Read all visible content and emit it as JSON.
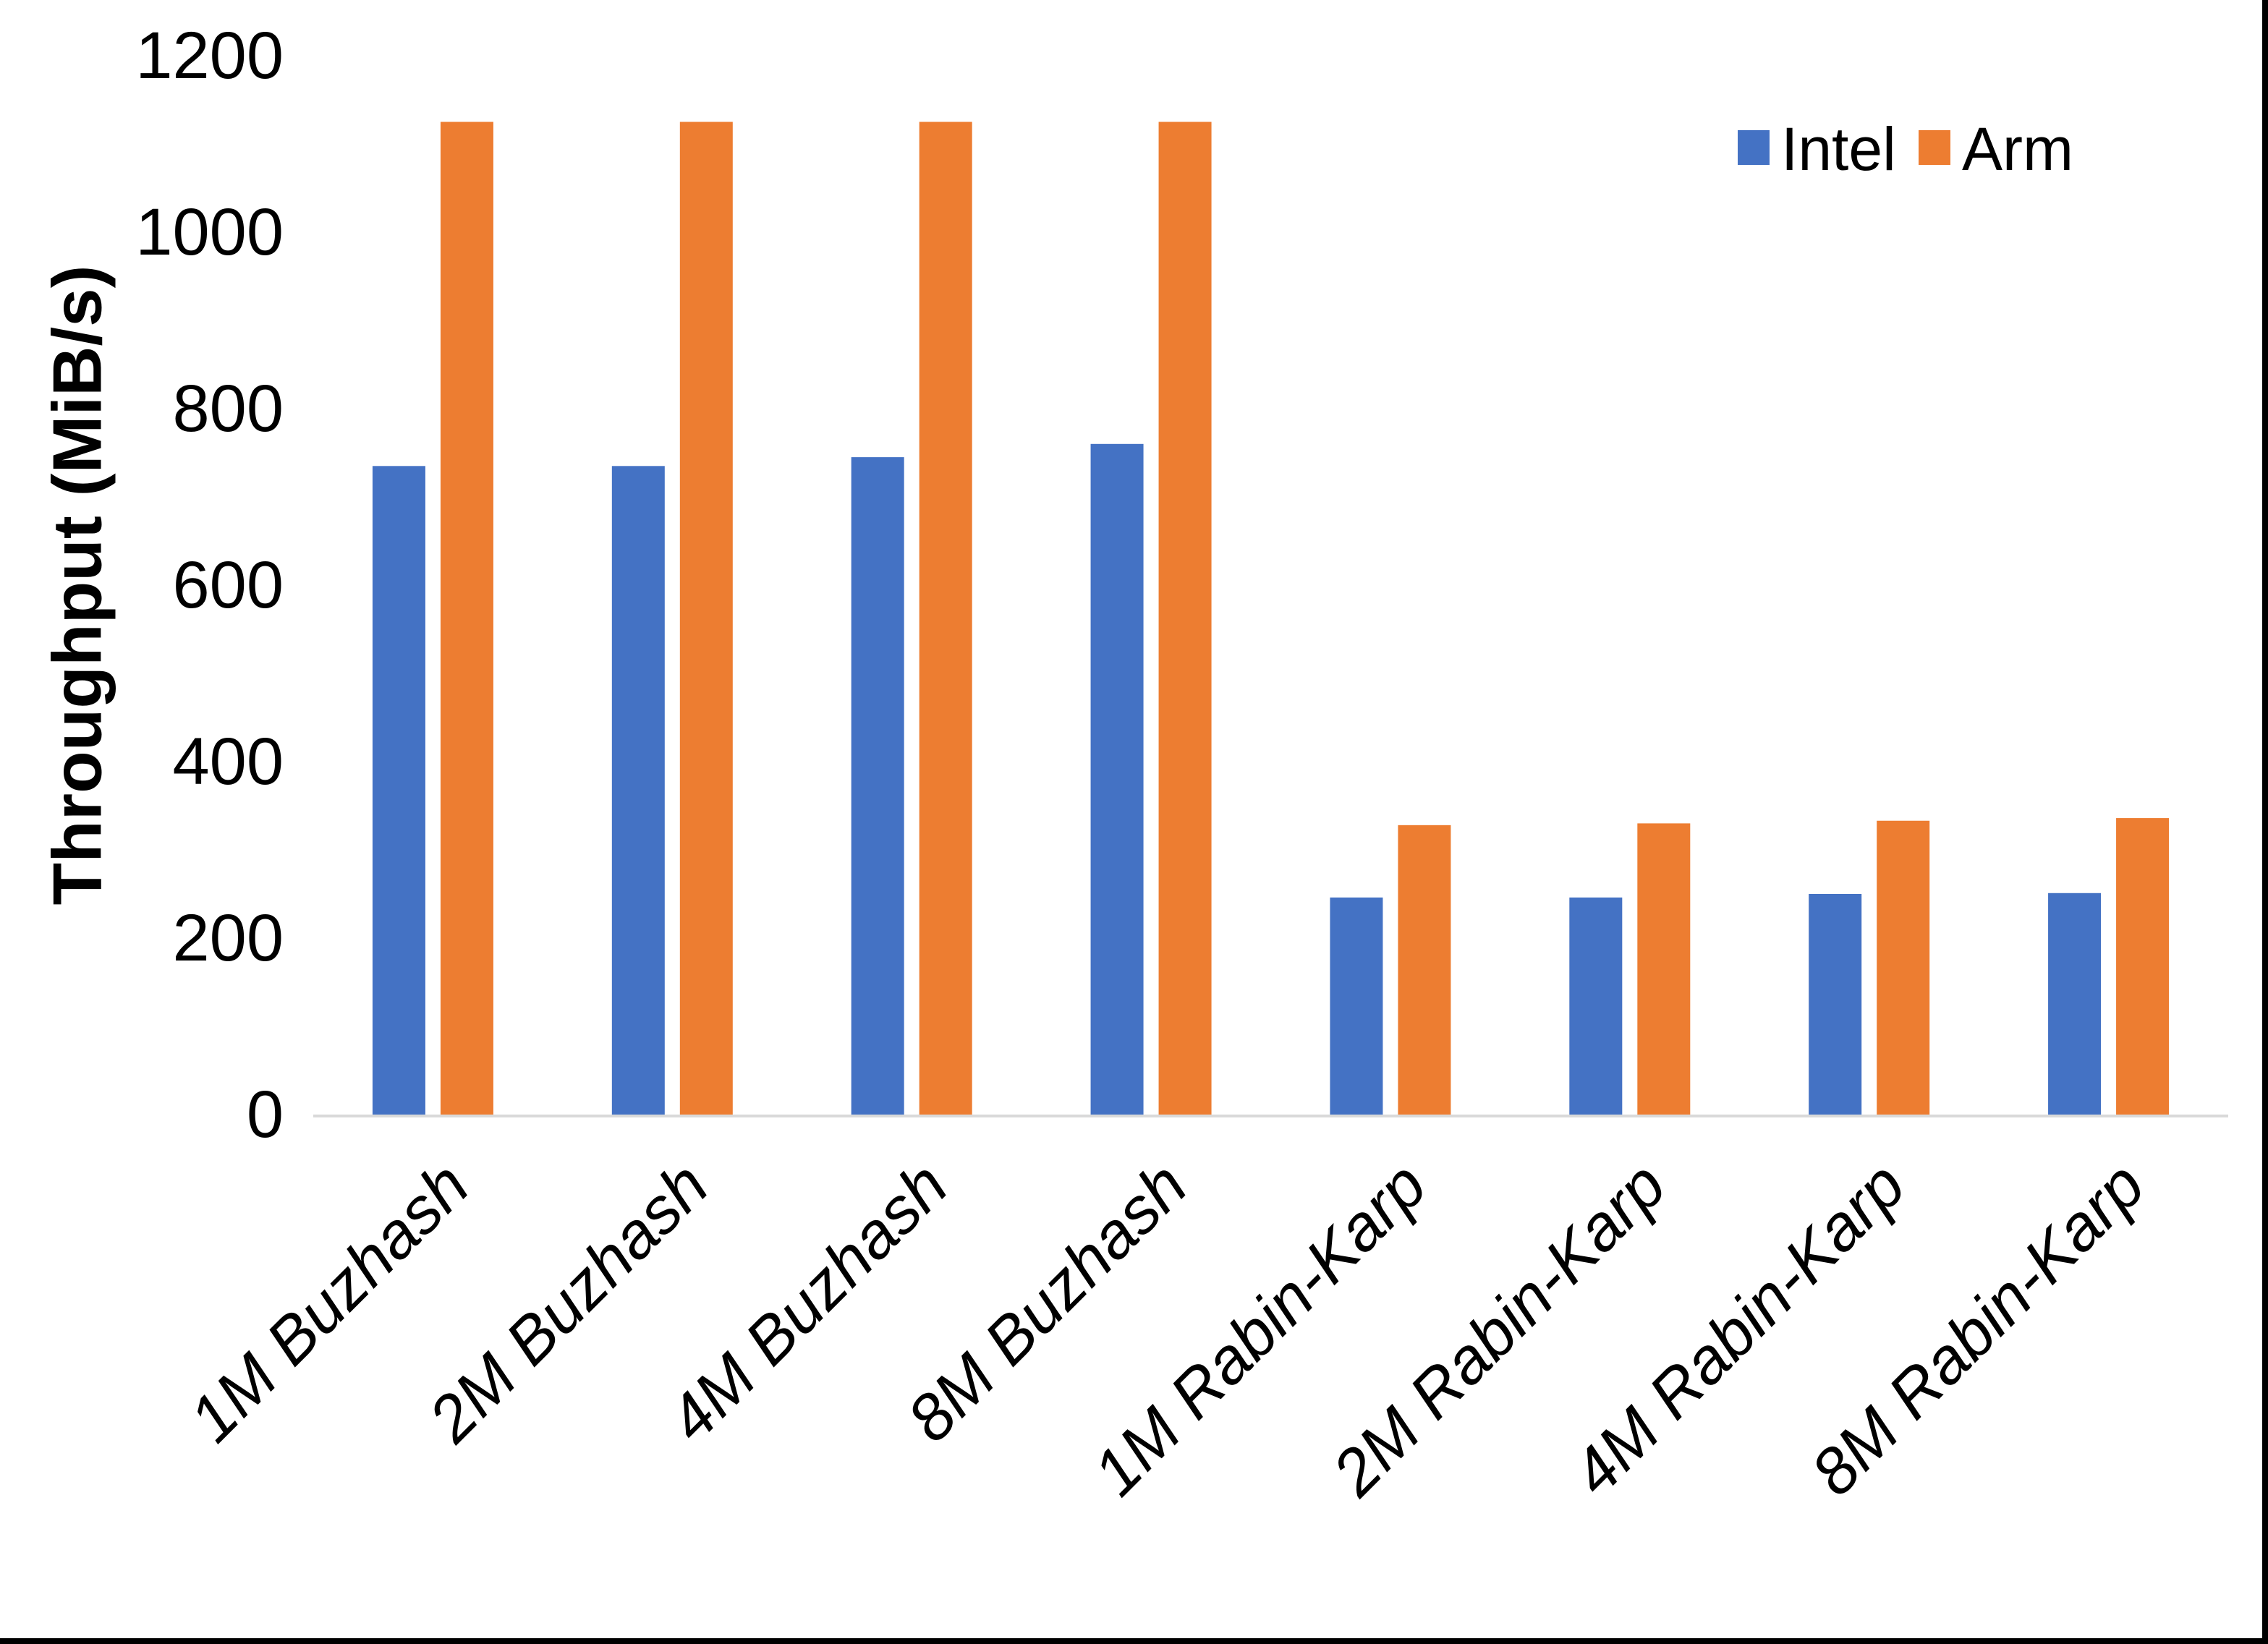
{
  "chart_data": {
    "type": "bar",
    "title": "",
    "xlabel": "",
    "ylabel": "Throughput (MiB/s)",
    "ylim": [
      0,
      1200
    ],
    "yticks": [
      0,
      200,
      400,
      600,
      800,
      1000,
      1200
    ],
    "grid": false,
    "legend_position": "top-right",
    "categories": [
      "1M Buzhash",
      "2M Buzhash",
      "4M Buzhash",
      "8M Buzhash",
      "1M Rabin-Karp",
      "2M Rabin-Karp",
      "4M Rabin-Karp",
      "8M Rabin-Karp"
    ],
    "series": [
      {
        "name": "Intel",
        "color": "#4472C4",
        "values": [
          735,
          735,
          745,
          760,
          246,
          246,
          250,
          251
        ]
      },
      {
        "name": "Arm",
        "color": "#ED7D31",
        "values": [
          1125,
          1125,
          1125,
          1125,
          328,
          330,
          333,
          336
        ]
      }
    ],
    "colors": {
      "axis_line": "#D9D9D9",
      "text": "#000000",
      "background": "#FFFFFF",
      "frame_border": "#000000"
    }
  }
}
